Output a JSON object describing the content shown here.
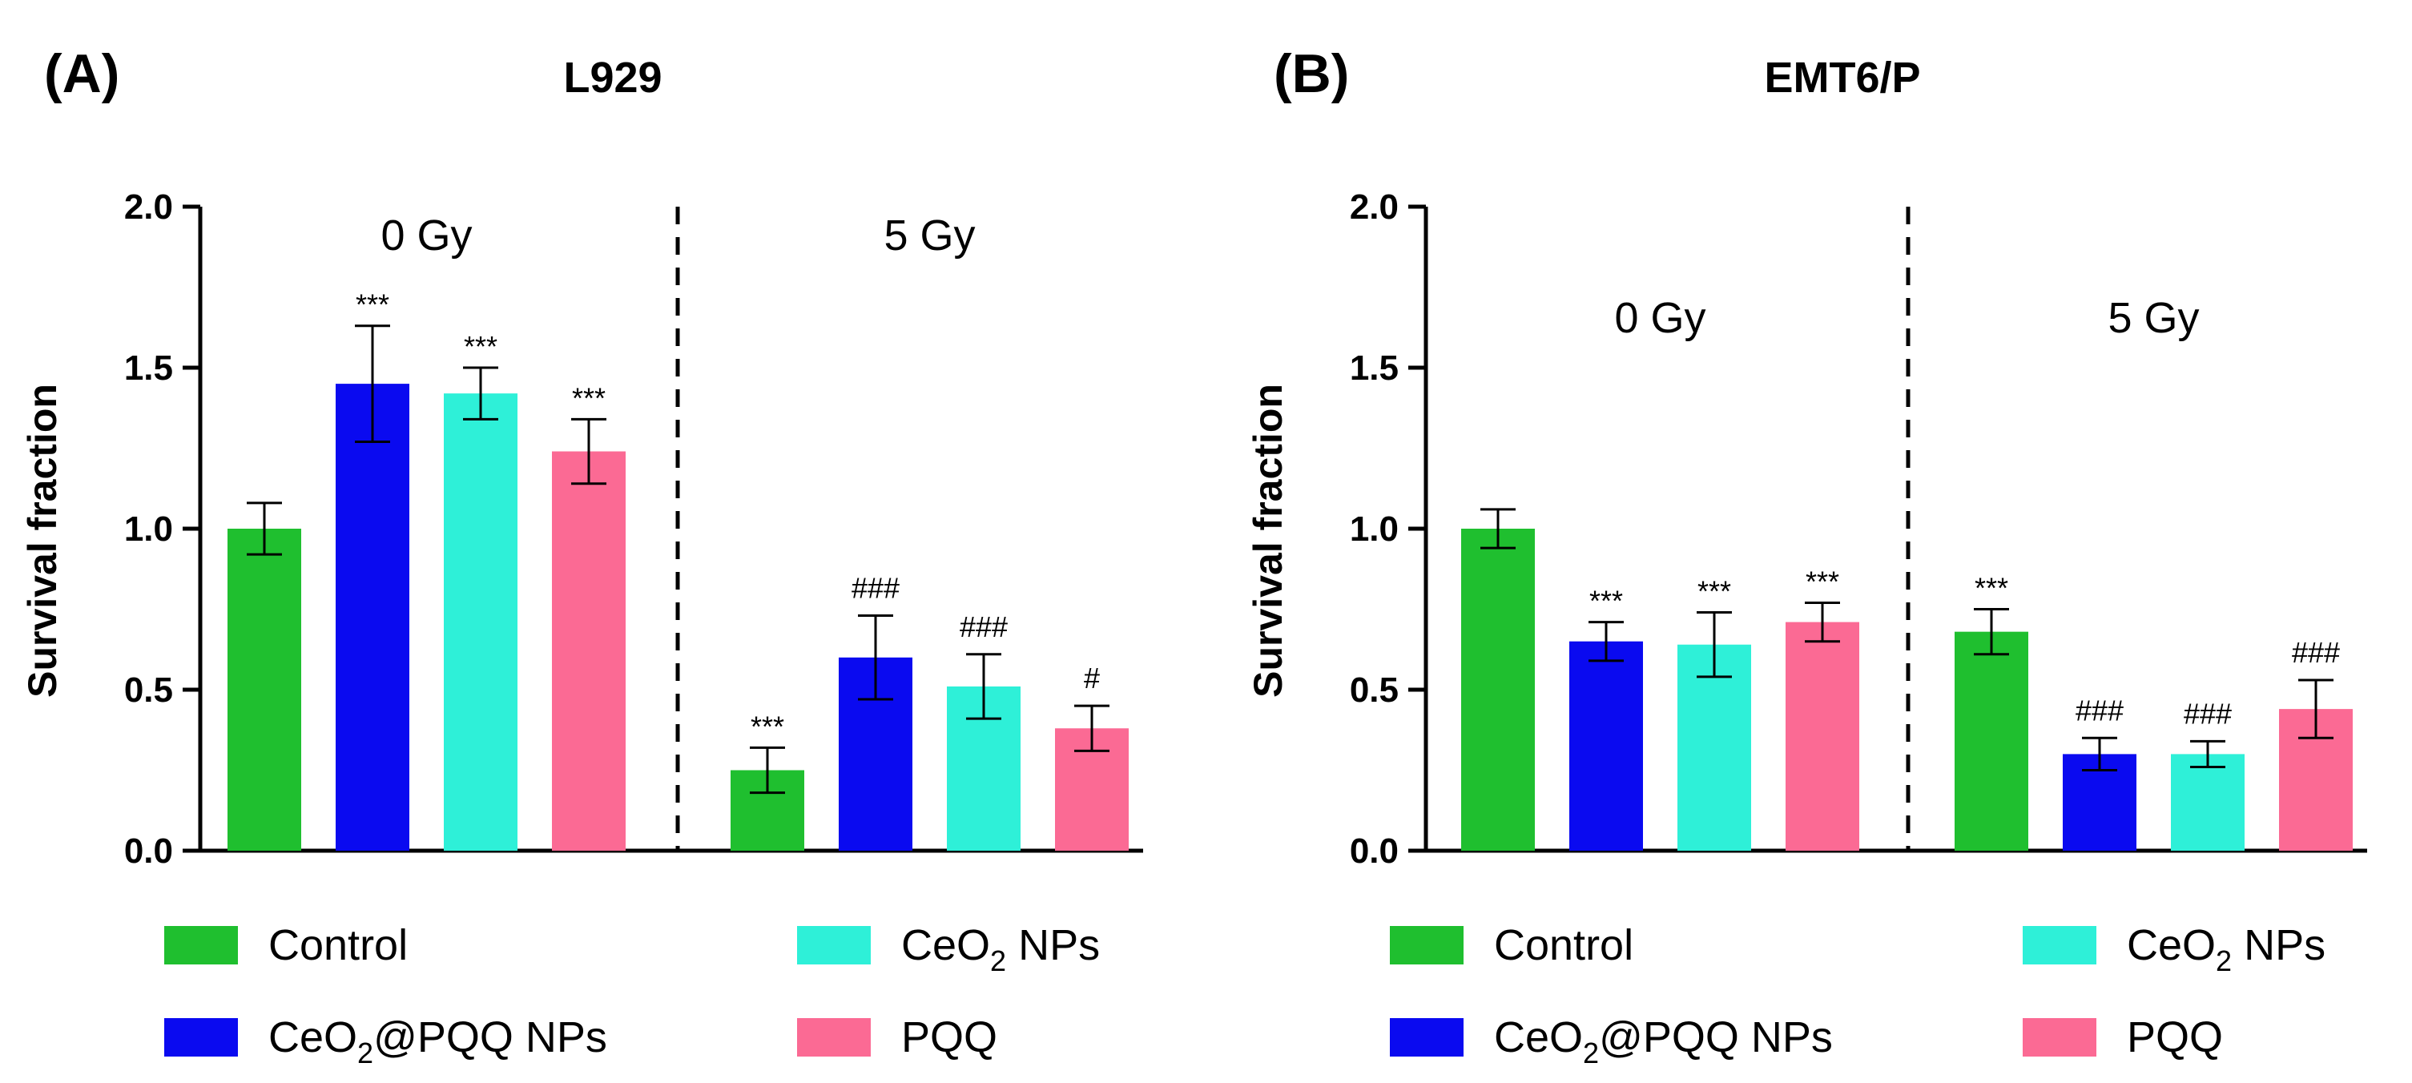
{
  "chart_data": [
    {
      "type": "bar",
      "panel_label": "(A)",
      "title": "L929",
      "ylabel": "Survival fraction",
      "xlabel": "",
      "ylim": [
        0,
        2.0
      ],
      "yticks": [
        "0.0",
        "0.5",
        "1.0",
        "1.5",
        "2.0"
      ],
      "group_labels": [
        "0 Gy",
        "5 Gy"
      ],
      "series_names": [
        "Control",
        "CeO2@PQQ NPs",
        "CeO2 NPs",
        "PQQ"
      ],
      "groups": [
        {
          "label": "0 Gy",
          "values": [
            1.0,
            1.45,
            1.42,
            1.24
          ],
          "errors": [
            0.08,
            0.18,
            0.08,
            0.1
          ],
          "marks": [
            "",
            "***",
            "***",
            "***"
          ]
        },
        {
          "label": "5 Gy",
          "values": [
            0.25,
            0.6,
            0.51,
            0.38
          ],
          "errors": [
            0.07,
            0.13,
            0.1,
            0.07
          ],
          "marks": [
            "***",
            "###",
            "###",
            "#"
          ]
        }
      ]
    },
    {
      "type": "bar",
      "panel_label": "(B)",
      "title": "EMT6/P",
      "ylabel": "Survival fraction",
      "xlabel": "",
      "ylim": [
        0,
        2.0
      ],
      "yticks": [
        "0.0",
        "0.5",
        "1.0",
        "1.5",
        "2.0"
      ],
      "group_labels": [
        "0 Gy",
        "5 Gy"
      ],
      "series_names": [
        "Control",
        "CeO2@PQQ NPs",
        "CeO2 NPs",
        "PQQ"
      ],
      "groups": [
        {
          "label": "0 Gy",
          "values": [
            1.0,
            0.65,
            0.64,
            0.71
          ],
          "errors": [
            0.06,
            0.06,
            0.1,
            0.06
          ],
          "marks": [
            "",
            "***",
            "***",
            "***"
          ]
        },
        {
          "label": "5 Gy",
          "values": [
            0.68,
            0.3,
            0.3,
            0.44
          ],
          "errors": [
            0.07,
            0.05,
            0.04,
            0.09
          ],
          "marks": [
            "***",
            "###",
            "###",
            "###"
          ]
        }
      ]
    }
  ],
  "series_colors": [
    "#1fbf2f",
    "#0a0af0",
    "#2ef0d8",
    "#fb6a94"
  ],
  "legend": [
    {
      "base": "Control",
      "sub": "",
      "tail": ""
    },
    {
      "base": "CeO",
      "sub": "2",
      "tail": "@PQQ NPs"
    },
    {
      "base": "CeO",
      "sub": "2",
      "tail": " NPs"
    },
    {
      "base": "PQQ",
      "sub": "",
      "tail": ""
    }
  ]
}
